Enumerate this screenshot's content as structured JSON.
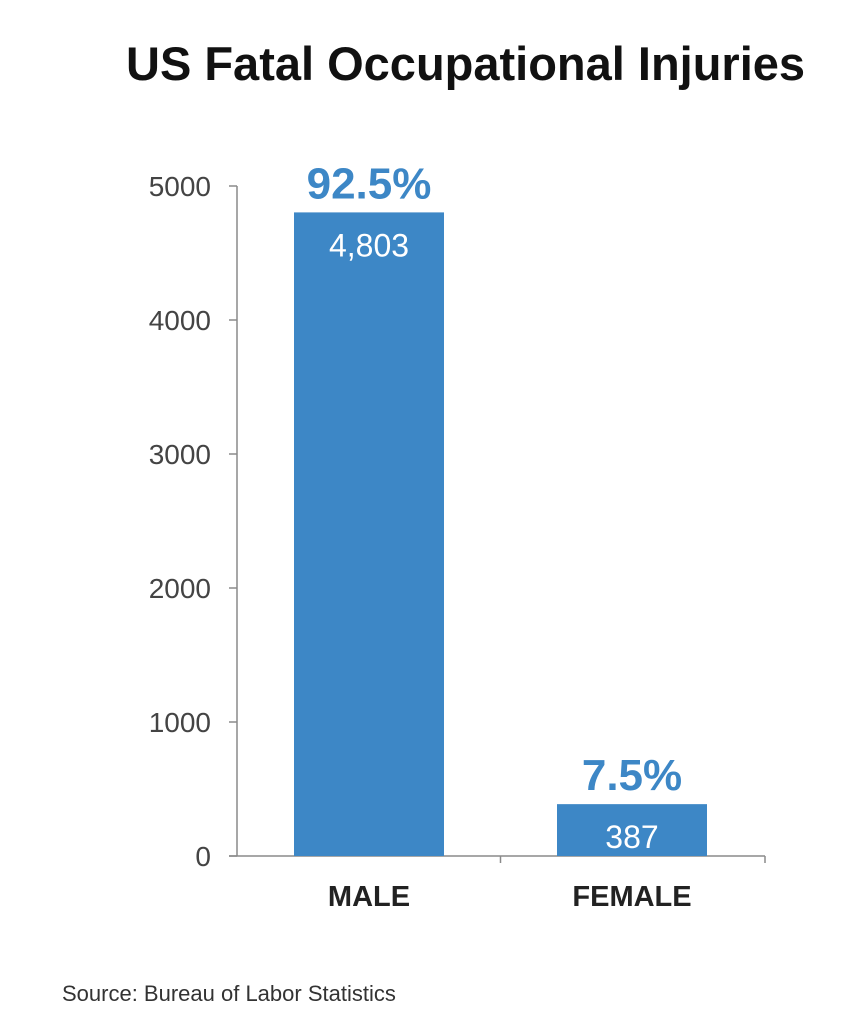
{
  "chart_data": {
    "type": "bar",
    "title": "US Fatal Occupational Injuries",
    "categories": [
      "MALE",
      "FEMALE"
    ],
    "values": [
      4803,
      387
    ],
    "value_labels": [
      "4,803",
      "387"
    ],
    "percent_labels": [
      "92.5%",
      "7.5%"
    ],
    "y_ticks": [
      "0",
      "1000",
      "2000",
      "3000",
      "4000",
      "5000"
    ],
    "ylim": [
      0,
      5000
    ],
    "xlabel": "",
    "ylabel": "",
    "grid": false,
    "bar_color": "#3d87c6",
    "percent_color": "#3d87c6"
  },
  "footer": {
    "source": "Source: Bureau of Labor Statistics"
  }
}
